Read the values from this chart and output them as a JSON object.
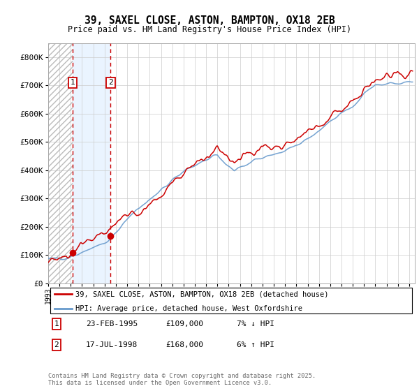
{
  "title_line1": "39, SAXEL CLOSE, ASTON, BAMPTON, OX18 2EB",
  "title_line2": "Price paid vs. HM Land Registry's House Price Index (HPI)",
  "legend_label_red": "39, SAXEL CLOSE, ASTON, BAMPTON, OX18 2EB (detached house)",
  "legend_label_blue": "HPI: Average price, detached house, West Oxfordshire",
  "transaction1_label": "1",
  "transaction1_date": "23-FEB-1995",
  "transaction1_price": "£109,000",
  "transaction1_hpi": "7% ↓ HPI",
  "transaction2_label": "2",
  "transaction2_date": "17-JUL-1998",
  "transaction2_price": "£168,000",
  "transaction2_hpi": "6% ↑ HPI",
  "footer": "Contains HM Land Registry data © Crown copyright and database right 2025.\nThis data is licensed under the Open Government Licence v3.0.",
  "year_start": 1993,
  "year_end": 2025,
  "ylim_max": 850000,
  "red_color": "#cc0000",
  "blue_color": "#6699cc",
  "bg_color": "#ffffff",
  "transaction1_year": 1995.15,
  "transaction2_year": 1998.54,
  "transaction1_value": 109000,
  "transaction2_value": 168000
}
